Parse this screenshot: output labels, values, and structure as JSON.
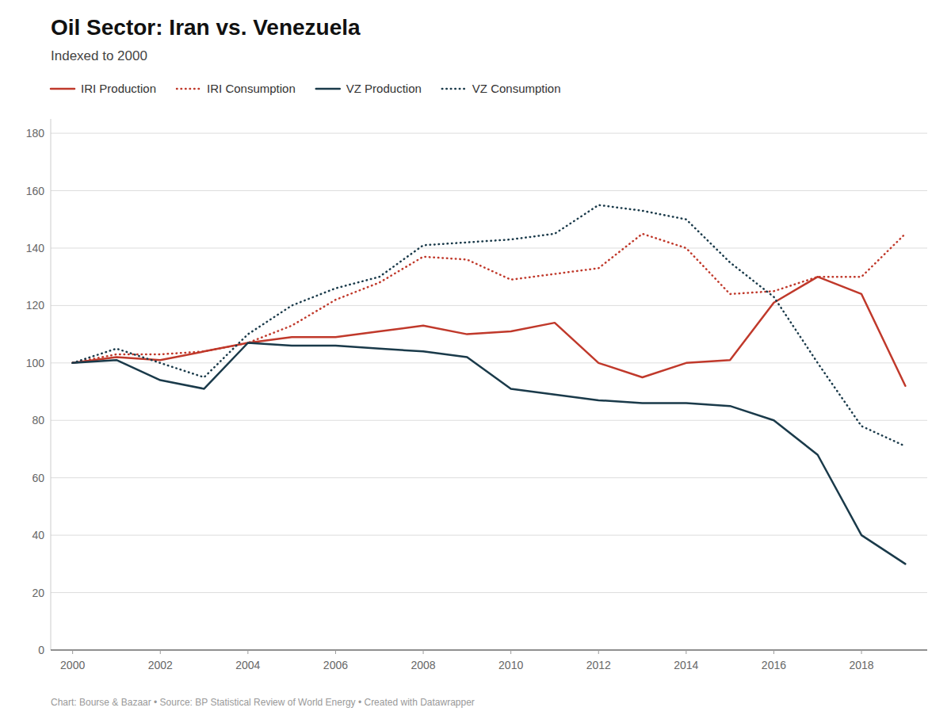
{
  "chart_data": {
    "type": "line",
    "title": "Oil Sector: Iran vs. Venezuela",
    "subtitle": "Indexed to 2000",
    "annotations": [
      "Chart: Bourse & Bazaar • Source: BP Statistical Review of World Energy • Created with Datawrapper"
    ],
    "x": [
      2000,
      2001,
      2002,
      2003,
      2004,
      2005,
      2006,
      2007,
      2008,
      2009,
      2010,
      2011,
      2012,
      2013,
      2014,
      2015,
      2016,
      2017,
      2018,
      2019
    ],
    "series": [
      {
        "name": "IRI Production",
        "color": "#c0392b",
        "line_style": "solid",
        "values": [
          100,
          102,
          101,
          104,
          107,
          109,
          109,
          111,
          113,
          110,
          111,
          114,
          100,
          95,
          100,
          101,
          121,
          130,
          124,
          92
        ]
      },
      {
        "name": "IRI Consumption",
        "color": "#c0392b",
        "line_style": "dotted",
        "values": [
          100,
          103,
          103,
          104,
          107,
          113,
          122,
          128,
          137,
          136,
          129,
          131,
          133,
          145,
          140,
          124,
          125,
          130,
          130,
          145
        ]
      },
      {
        "name": "VZ Production",
        "color": "#1a3a4a",
        "line_style": "solid",
        "values": [
          100,
          101,
          94,
          91,
          107,
          106,
          106,
          105,
          104,
          102,
          91,
          89,
          87,
          86,
          86,
          85,
          80,
          68,
          40,
          30
        ]
      },
      {
        "name": "VZ Consumption",
        "color": "#1a3a4a",
        "line_style": "dotted",
        "values": [
          100,
          105,
          100,
          95,
          110,
          120,
          126,
          130,
          141,
          142,
          143,
          145,
          155,
          153,
          150,
          135,
          123,
          100,
          78,
          71
        ]
      }
    ],
    "xlim": [
      1999.5,
      2019.5
    ],
    "xticks": [
      2000,
      2002,
      2004,
      2006,
      2008,
      2010,
      2012,
      2014,
      2016,
      2018
    ],
    "ylim": [
      0,
      185
    ],
    "yticks": [
      0,
      20,
      40,
      60,
      80,
      100,
      120,
      140,
      160,
      180
    ],
    "grid": true,
    "legend": "upper left"
  }
}
